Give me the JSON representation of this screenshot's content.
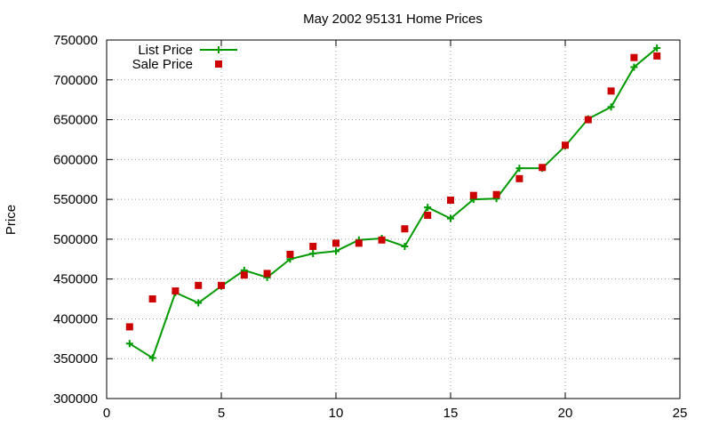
{
  "chart_data": {
    "type": "line",
    "title": "May 2002 95131 Home Prices",
    "xlabel": "",
    "ylabel": "Price",
    "xlim": [
      0,
      25
    ],
    "ylim": [
      300000,
      750000
    ],
    "xticks": [
      0,
      5,
      10,
      15,
      20,
      25
    ],
    "yticks": [
      300000,
      350000,
      400000,
      450000,
      500000,
      550000,
      600000,
      650000,
      700000,
      750000
    ],
    "grid": true,
    "legend_position": "top-left",
    "series": [
      {
        "name": "List Price",
        "style": "line-plus",
        "color": "#009900",
        "x": [
          1,
          2,
          3,
          4,
          5,
          6,
          7,
          8,
          9,
          10,
          11,
          12,
          13,
          14,
          15,
          16,
          17,
          18,
          19,
          20,
          21,
          22,
          23,
          24
        ],
        "values": [
          369000,
          351000,
          433000,
          420000,
          441000,
          461000,
          452000,
          475000,
          482000,
          485000,
          499000,
          501000,
          491000,
          540000,
          526000,
          550000,
          551000,
          589000,
          589000,
          617000,
          651000,
          666000,
          716000,
          740000
        ]
      },
      {
        "name": "Sale Price",
        "style": "square",
        "color": "#cc0000",
        "x": [
          1,
          2,
          3,
          4,
          5,
          6,
          7,
          8,
          9,
          10,
          11,
          12,
          13,
          14,
          15,
          16,
          17,
          18,
          19,
          20,
          21,
          22,
          23,
          24
        ],
        "values": [
          390000,
          425000,
          435000,
          442000,
          442000,
          455000,
          457000,
          481000,
          491000,
          495000,
          495000,
          499000,
          513000,
          530000,
          549000,
          555000,
          556000,
          576000,
          590000,
          618000,
          650000,
          686000,
          728000,
          730000
        ]
      }
    ]
  }
}
